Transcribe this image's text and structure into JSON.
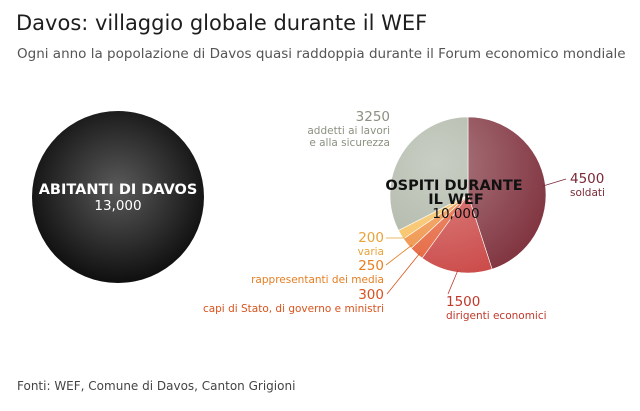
{
  "title": "Davos: villaggio globale durante il WEF",
  "subtitle": "Ogni anno la popolazione di Davos quasi raddoppia durante il Forum economico mondiale",
  "source": "Fonti: WEF, Comune di Davos, Canton Grigioni",
  "chart_data": [
    {
      "type": "pie",
      "name": "ABITANTI DI DAVOS",
      "total_label": "13,000",
      "slices": [
        {
          "label": "ABITANTI DI DAVOS",
          "value": 13000,
          "value_label": "13,000",
          "color": "#222222"
        }
      ]
    },
    {
      "type": "pie",
      "name_lines": [
        "OSPITI DURANTE",
        "IL WEF"
      ],
      "total_label": "10,000",
      "slices": [
        {
          "label": "soldati",
          "value": 4500,
          "value_label": "4500",
          "color": "#7a2a36",
          "label_color": "#7a2a36"
        },
        {
          "label": "dirigenti economici",
          "value": 1500,
          "value_label": "1500",
          "color": "#c8403e",
          "label_color": "#c0392b"
        },
        {
          "label": "capi di Stato, di governo e ministri",
          "value": 300,
          "value_label": "300",
          "color": "#e35a2f",
          "label_color": "#d9531e"
        },
        {
          "label": "rappresentanti dei media",
          "value": 250,
          "value_label": "250",
          "color": "#ee8a3a",
          "label_color": "#e67e22"
        },
        {
          "label": "varia",
          "value": 200,
          "value_label": "200",
          "color": "#f6bc55",
          "label_color": "#e8a33a"
        },
        {
          "label_lines": [
            "addetti ai lavori",
            "e alla sicurezza"
          ],
          "value": 3250,
          "value_label": "3250",
          "color": "#a7b09f",
          "label_color": "#8a9180"
        }
      ]
    }
  ]
}
